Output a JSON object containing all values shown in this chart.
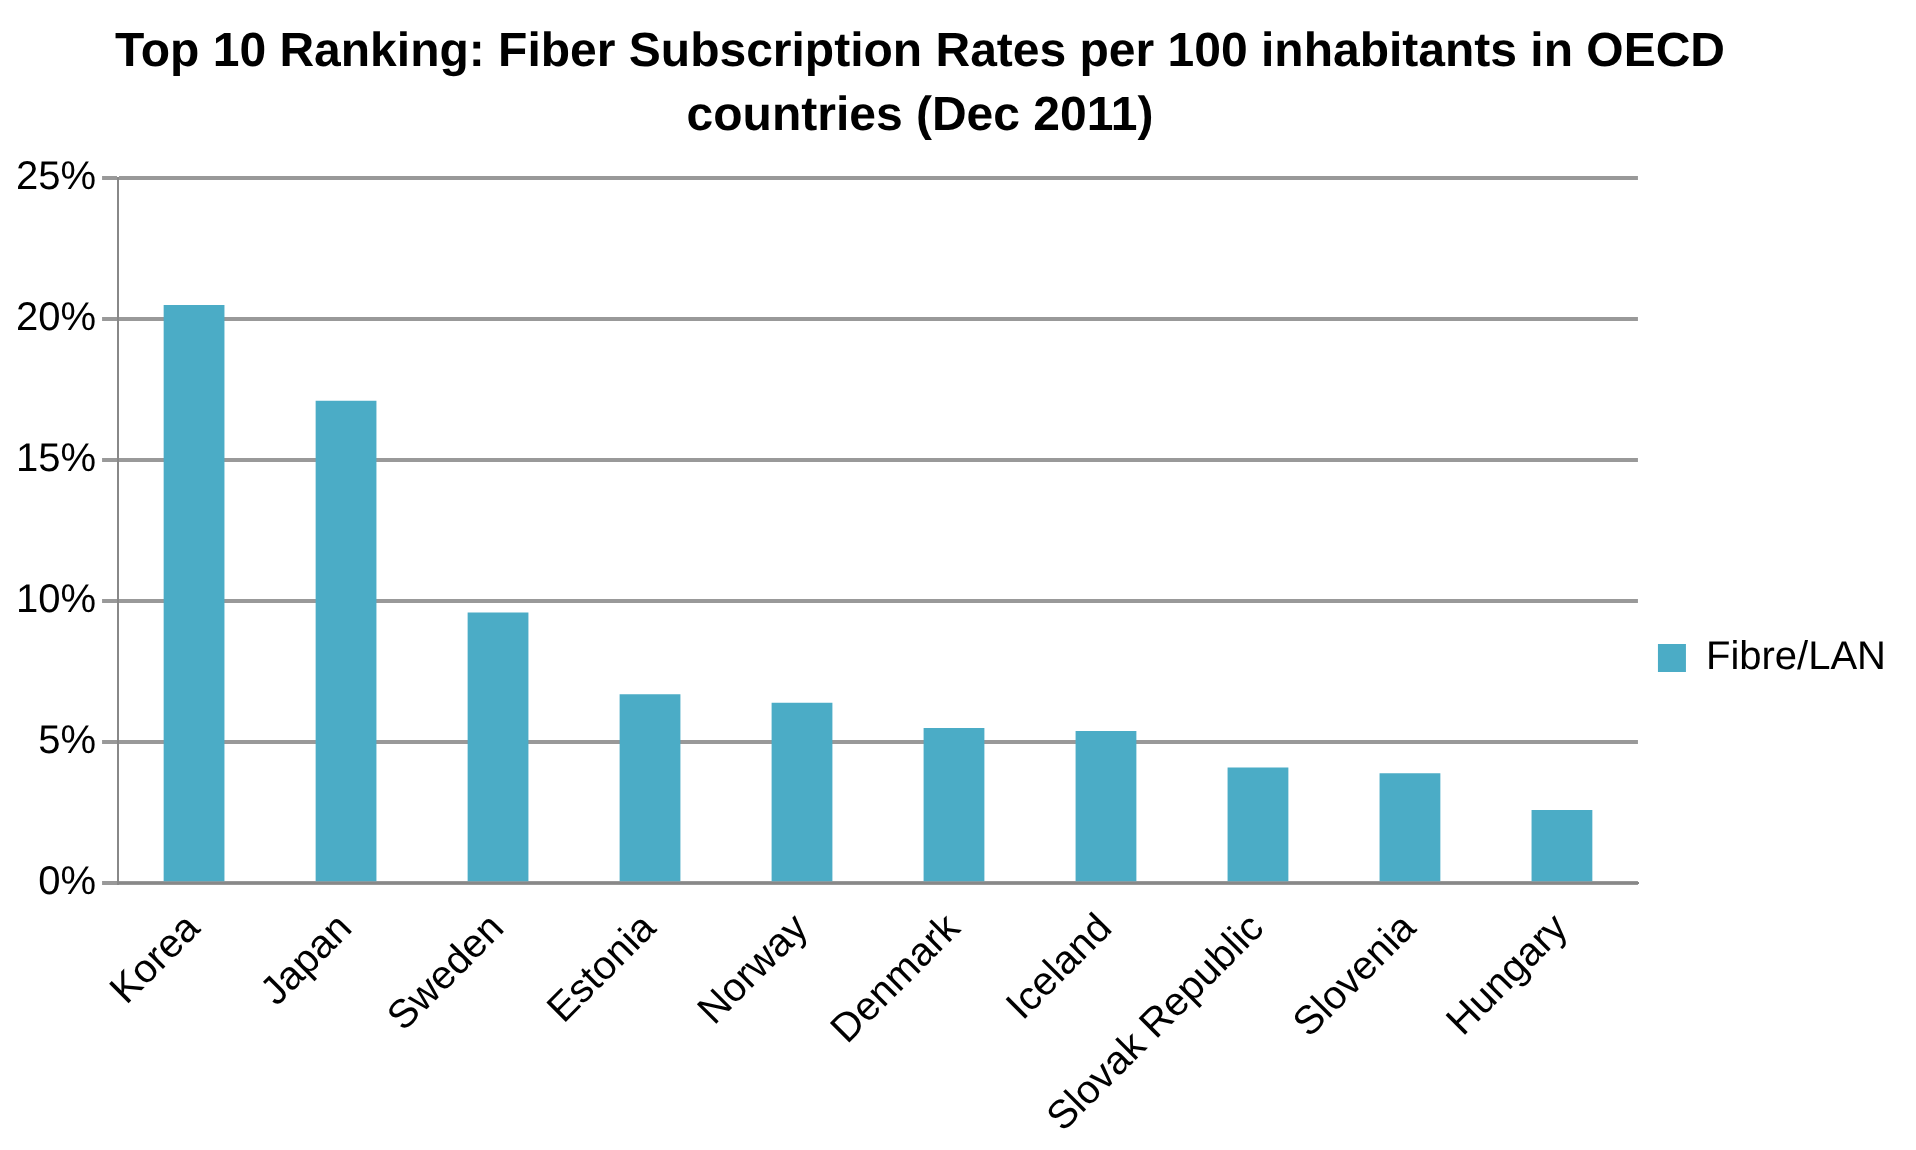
{
  "chart_data": {
    "type": "bar",
    "title": "Top 10 Ranking: Fiber Subscription Rates per 100 inhabitants in OECD countries (Dec 2011)",
    "categories": [
      "Korea",
      "Japan",
      "Sweden",
      "Estonia",
      "Norway",
      "Denmark",
      "Iceland",
      "Slovak Republic",
      "Slovenia",
      "Hungary"
    ],
    "series": [
      {
        "name": "Fibre/LAN",
        "color": "#4bacc6",
        "values": [
          20.5,
          17.1,
          9.6,
          6.7,
          6.4,
          5.5,
          5.4,
          4.1,
          3.9,
          2.6
        ]
      }
    ],
    "ylim": [
      0,
      25
    ],
    "yticks": [
      {
        "value": 0,
        "label": "0%"
      },
      {
        "value": 5,
        "label": "5%"
      },
      {
        "value": 10,
        "label": "10%"
      },
      {
        "value": 15,
        "label": "15%"
      },
      {
        "value": 20,
        "label": "20%"
      },
      {
        "value": 25,
        "label": "25%"
      }
    ],
    "grid": "y",
    "legend": "right"
  }
}
